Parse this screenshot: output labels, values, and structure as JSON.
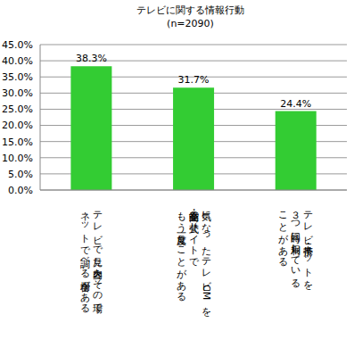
{
  "chart_data": {
    "type": "bar",
    "title": "テレビに関する情報行動",
    "subtitle": "(n=2090)",
    "categories": [
      "テレビで見た内容をその場で\nネットで調べる場合がある",
      "気になったテレビCMを\n企業・商品の公式サイトで\nもう一度見たことがある",
      "テレビ・携帯・ネットを\n３つ同時に利用している\nことがある"
    ],
    "values": [
      38.3,
      31.7,
      24.4
    ],
    "value_labels": [
      "38.3%",
      "31.7%",
      "24.4%"
    ],
    "data_labels": true,
    "color": "#33cc33",
    "ylim": [
      0,
      45
    ],
    "yticks": [
      {
        "value": 0,
        "label": "0.0%"
      },
      {
        "value": 5,
        "label": "5.0%"
      },
      {
        "value": 10,
        "label": "10.0%"
      },
      {
        "value": 15,
        "label": "15.0%"
      },
      {
        "value": 20,
        "label": "20.0%"
      },
      {
        "value": 25,
        "label": "25.0%"
      },
      {
        "value": 30,
        "label": "30.0%"
      },
      {
        "value": 35,
        "label": "35.0%"
      },
      {
        "value": 40,
        "label": "40.0%"
      },
      {
        "value": 45,
        "label": "45.0%"
      }
    ],
    "grid": true
  }
}
